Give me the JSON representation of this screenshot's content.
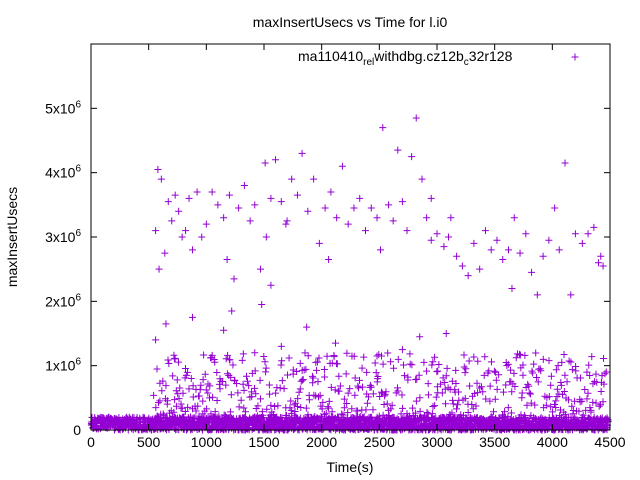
{
  "chart_data": {
    "type": "scatter",
    "title": "maxInsertUsecs vs Time for l.i0",
    "xlabel": "Time(s)",
    "ylabel": "maxInsertUsecs",
    "xlim": [
      0,
      4500
    ],
    "ylim": [
      0,
      6000000
    ],
    "x_ticks": [
      {
        "value": 0,
        "label": "0"
      },
      {
        "value": 500,
        "label": "500"
      },
      {
        "value": 1000,
        "label": "1000"
      },
      {
        "value": 1500,
        "label": "1500"
      },
      {
        "value": 2000,
        "label": "2000"
      },
      {
        "value": 2500,
        "label": "2500"
      },
      {
        "value": 3000,
        "label": "3000"
      },
      {
        "value": 3500,
        "label": "3500"
      },
      {
        "value": 4000,
        "label": "4000"
      },
      {
        "value": 4500,
        "label": "4500"
      }
    ],
    "y_ticks": [
      {
        "value": 0,
        "base": "0",
        "exp": ""
      },
      {
        "value": 1000000,
        "base": "1x10",
        "exp": "6"
      },
      {
        "value": 2000000,
        "base": "2x10",
        "exp": "6"
      },
      {
        "value": 3000000,
        "base": "3x10",
        "exp": "6"
      },
      {
        "value": 4000000,
        "base": "4x10",
        "exp": "6"
      },
      {
        "value": 5000000,
        "base": "5x10",
        "exp": "6"
      }
    ],
    "legend_position": "top-right",
    "grid": false,
    "series": [
      {
        "name_parts": [
          "ma110410",
          "rel",
          "withdbg.cz12b",
          "c",
          "32r128"
        ],
        "name_subscripts": [
          1,
          3
        ],
        "color": "#9400d3",
        "marker": "plus",
        "upper_points": [
          [
            580,
            4050000
          ],
          [
            610,
            3900000
          ],
          [
            560,
            3100000
          ],
          [
            590,
            2500000
          ],
          [
            640,
            2750000
          ],
          [
            670,
            3550000
          ],
          [
            700,
            3250000
          ],
          [
            730,
            3650000
          ],
          [
            760,
            3400000
          ],
          [
            790,
            3000000
          ],
          [
            820,
            3100000
          ],
          [
            850,
            3600000
          ],
          [
            880,
            2800000
          ],
          [
            920,
            3700000
          ],
          [
            960,
            3000000
          ],
          [
            1000,
            3200000
          ],
          [
            1050,
            3700000
          ],
          [
            1100,
            3500000
          ],
          [
            1150,
            3300000
          ],
          [
            1200,
            3650000
          ],
          [
            1240,
            2350000
          ],
          [
            1280,
            3450000
          ],
          [
            1330,
            3800000
          ],
          [
            1380,
            3250000
          ],
          [
            1420,
            3500000
          ],
          [
            1470,
            2500000
          ],
          [
            1510,
            4150000
          ],
          [
            1560,
            3600000
          ],
          [
            1600,
            4200000
          ],
          [
            1650,
            3550000
          ],
          [
            1700,
            3250000
          ],
          [
            1740,
            3900000
          ],
          [
            1790,
            3650000
          ],
          [
            1830,
            4300000
          ],
          [
            1880,
            3400000
          ],
          [
            1930,
            3900000
          ],
          [
            1980,
            2900000
          ],
          [
            2030,
            3450000
          ],
          [
            2080,
            3700000
          ],
          [
            2130,
            3300000
          ],
          [
            2180,
            4100000
          ],
          [
            2230,
            3200000
          ],
          [
            2280,
            3450000
          ],
          [
            2330,
            3600000
          ],
          [
            2380,
            3100000
          ],
          [
            2430,
            3450000
          ],
          [
            2480,
            3300000
          ],
          [
            2530,
            4700000
          ],
          [
            2580,
            3500000
          ],
          [
            2620,
            3250000
          ],
          [
            2660,
            4350000
          ],
          [
            2700,
            3550000
          ],
          [
            2740,
            3100000
          ],
          [
            2780,
            4250000
          ],
          [
            2820,
            4850000
          ],
          [
            2870,
            3900000
          ],
          [
            2910,
            3300000
          ],
          [
            2950,
            3600000
          ],
          [
            3000,
            3050000
          ],
          [
            3060,
            2850000
          ],
          [
            3120,
            3300000
          ],
          [
            3170,
            2700000
          ],
          [
            3220,
            2550000
          ],
          [
            3270,
            2400000
          ],
          [
            3320,
            2900000
          ],
          [
            3370,
            2500000
          ],
          [
            3420,
            3100000
          ],
          [
            3470,
            2800000
          ],
          [
            3520,
            2950000
          ],
          [
            3570,
            2650000
          ],
          [
            3620,
            2800000
          ],
          [
            3670,
            3300000
          ],
          [
            3720,
            2750000
          ],
          [
            3770,
            3050000
          ],
          [
            3820,
            2450000
          ],
          [
            3870,
            2100000
          ],
          [
            3920,
            2700000
          ],
          [
            3970,
            2950000
          ],
          [
            4020,
            3450000
          ],
          [
            4060,
            2800000
          ],
          [
            4110,
            4150000
          ],
          [
            4160,
            2100000
          ],
          [
            4200,
            3050000
          ],
          [
            4260,
            2900000
          ],
          [
            4310,
            3050000
          ],
          [
            4360,
            3150000
          ],
          [
            4400,
            2600000
          ],
          [
            4440,
            2550000
          ],
          [
            4420,
            2700000
          ],
          [
            1220,
            1850000
          ],
          [
            1480,
            1950000
          ],
          [
            1180,
            2650000
          ],
          [
            1560,
            2250000
          ],
          [
            1520,
            3000000
          ],
          [
            1690,
            3200000
          ],
          [
            2060,
            2650000
          ],
          [
            2510,
            2800000
          ],
          [
            2950,
            2950000
          ],
          [
            3100,
            3000000
          ],
          [
            3650,
            2200000
          ]
        ],
        "mid_points": [
          [
            560,
            1400000
          ],
          [
            650,
            1650000
          ],
          [
            880,
            1750000
          ],
          [
            1150,
            1550000
          ],
          [
            1650,
            1300000
          ],
          [
            1870,
            1600000
          ],
          [
            2120,
            1350000
          ],
          [
            2700,
            1250000
          ],
          [
            2850,
            1450000
          ],
          [
            3080,
            1500000
          ],
          [
            3600,
            1050000
          ],
          [
            4050,
            1000000
          ],
          [
            4300,
            900000
          ],
          [
            1420,
            1200000
          ],
          [
            2480,
            1150000
          ]
        ],
        "dense_band": {
          "x_start": 0,
          "x_end": 4480,
          "y_max": 200000
        },
        "spread_band": {
          "x_start": 540,
          "x_end": 4480,
          "y_max": 1200000,
          "y_bias": 2.2
        }
      }
    ]
  }
}
